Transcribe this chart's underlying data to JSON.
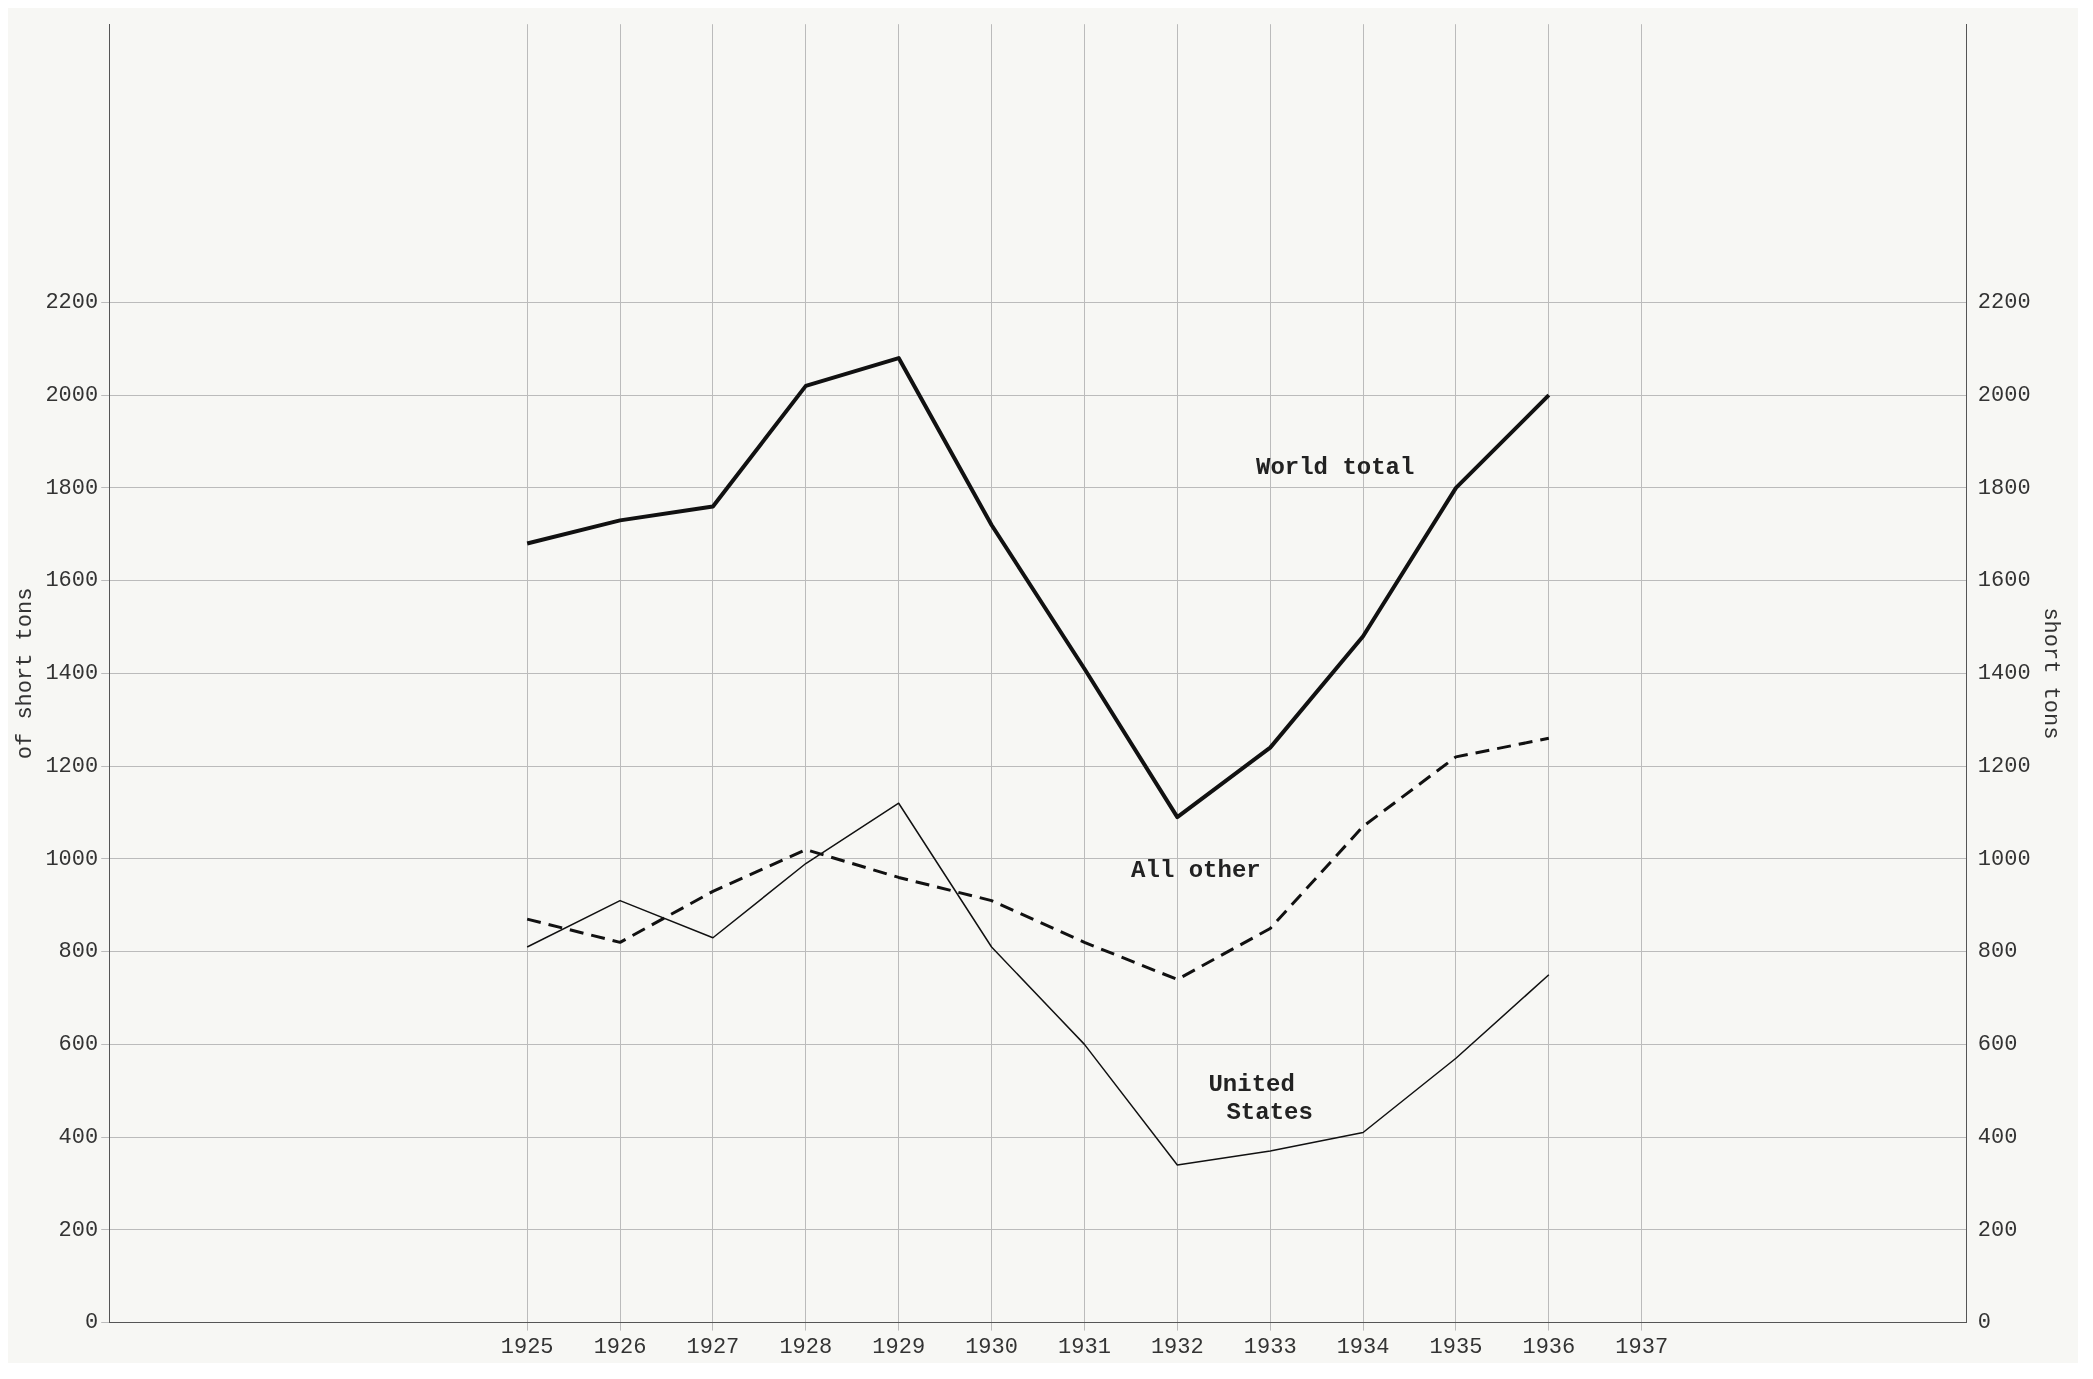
{
  "chart_data": {
    "type": "line",
    "ylabel": "of short tons",
    "y2label": "short tons",
    "x": [
      1925,
      1926,
      1927,
      1928,
      1929,
      1930,
      1931,
      1932,
      1933,
      1934,
      1935,
      1936
    ],
    "xlim": [
      1920.5,
      1940.5
    ],
    "xticks": [
      1925,
      1926,
      1927,
      1928,
      1929,
      1930,
      1931,
      1932,
      1933,
      1934,
      1935,
      1936,
      1937
    ],
    "ylim": [
      0,
      2800
    ],
    "yticks": [
      0,
      200,
      400,
      600,
      800,
      1000,
      1200,
      1400,
      1600,
      1800,
      2000,
      2200
    ],
    "y2lim": [
      0,
      2800
    ],
    "y2ticks": [
      0,
      200,
      400,
      600,
      800,
      1000,
      1200,
      1400,
      1600,
      1800,
      2000,
      2200
    ],
    "grid": true,
    "legend": false,
    "marker": "none",
    "series": [
      {
        "name": "World total",
        "color": "#111111",
        "line_style": "solid",
        "values": [
          1680,
          1730,
          1760,
          2020,
          2080,
          1720,
          1410,
          1090,
          1240,
          1480,
          1800,
          2000
        ]
      },
      {
        "name": "All other",
        "color": "#111111",
        "line_style": "dashed",
        "values": [
          870,
          820,
          930,
          1020,
          960,
          910,
          820,
          740,
          850,
          1070,
          1220,
          1260
        ]
      },
      {
        "name": "United States",
        "color": "#111111",
        "line_style": "solid",
        "values": [
          810,
          910,
          830,
          990,
          1120,
          810,
          600,
          340,
          370,
          410,
          570,
          750
        ]
      }
    ]
  }
}
